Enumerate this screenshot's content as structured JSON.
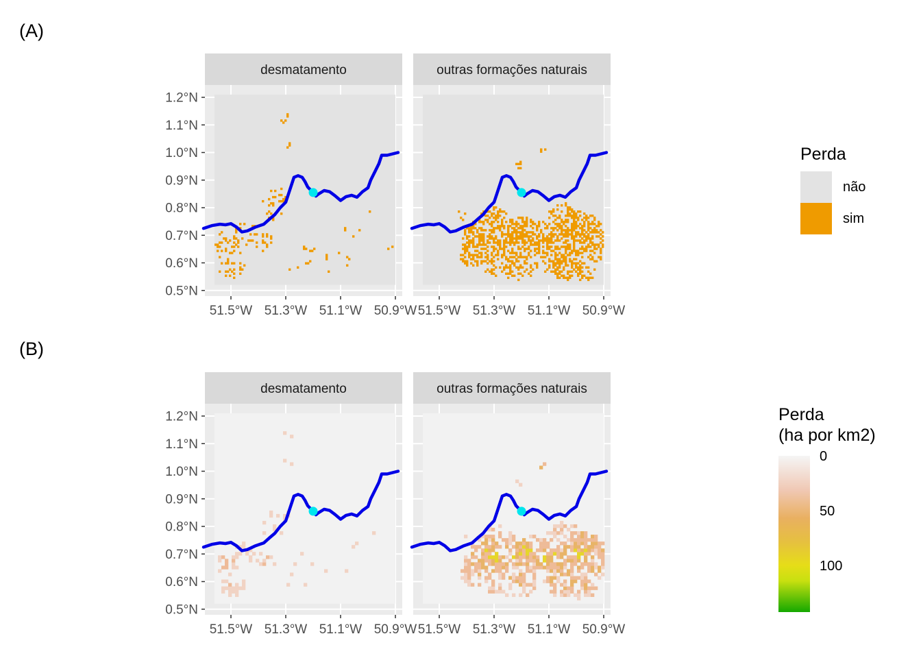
{
  "figure": {
    "panel_a_tag": "(A)",
    "panel_b_tag": "(B)"
  },
  "facets": [
    "desmatamento",
    "outras formações naturais"
  ],
  "axes": {
    "x_ticks": [
      "51.5°W",
      "51.3°W",
      "51.1°W",
      "50.9°W"
    ],
    "x_tick_values": [
      -51.5,
      -51.3,
      -51.1,
      -50.9
    ],
    "y_ticks": [
      "1.2°N",
      "1.1°N",
      "1.0°N",
      "0.9°N",
      "0.8°N",
      "0.7°N",
      "0.6°N",
      "0.5°N"
    ],
    "y_tick_values": [
      1.2,
      1.1,
      1.0,
      0.9,
      0.8,
      0.7,
      0.6,
      0.5
    ],
    "x_range": [
      -51.6,
      -50.87
    ],
    "y_range": [
      0.49,
      1.23
    ]
  },
  "legend_a": {
    "title": "Perda",
    "items": [
      {
        "label": "não",
        "color": "#e3e3e3"
      },
      {
        "label": "sim",
        "color": "#ef9b00"
      }
    ]
  },
  "legend_b": {
    "title_line1": "Perda",
    "title_line2": "(ha por km2)",
    "ticks": [
      "0",
      "50",
      "100"
    ],
    "tick_values": [
      0,
      50,
      100
    ],
    "colors": [
      "#f5f5f5",
      "#f0c8b4",
      "#e9b060",
      "#e6dd18",
      "#14a800"
    ]
  },
  "colors": {
    "panel_bg": "#ebebeb",
    "strip_bg": "#d9d9d9",
    "raster_no": "#e3e3e3",
    "raster_yes": "#ef9b00",
    "density_zero": "#f2f2f2",
    "river": "#0000e6",
    "point": "#00e5ee"
  },
  "map_features": {
    "river_path": [
      [
        -51.6,
        0.725
      ],
      [
        -51.57,
        0.735
      ],
      [
        -51.54,
        0.74
      ],
      [
        -51.52,
        0.738
      ],
      [
        -51.5,
        0.742
      ],
      [
        -51.48,
        0.73
      ],
      [
        -51.46,
        0.712
      ],
      [
        -51.44,
        0.716
      ],
      [
        -51.41,
        0.73
      ],
      [
        -51.38,
        0.74
      ],
      [
        -51.36,
        0.758
      ],
      [
        -51.34,
        0.775
      ],
      [
        -51.32,
        0.8
      ],
      [
        -51.3,
        0.82
      ],
      [
        -51.29,
        0.85
      ],
      [
        -51.28,
        0.88
      ],
      [
        -51.27,
        0.91
      ],
      [
        -51.255,
        0.916
      ],
      [
        -51.24,
        0.91
      ],
      [
        -51.23,
        0.895
      ],
      [
        -51.22,
        0.875
      ],
      [
        -51.2,
        0.855
      ],
      [
        -51.19,
        0.842
      ],
      [
        -51.18,
        0.85
      ],
      [
        -51.16,
        0.862
      ],
      [
        -51.14,
        0.858
      ],
      [
        -51.12,
        0.843
      ],
      [
        -51.1,
        0.826
      ],
      [
        -51.08,
        0.84
      ],
      [
        -51.06,
        0.845
      ],
      [
        -51.04,
        0.838
      ],
      [
        -51.02,
        0.858
      ],
      [
        -51.0,
        0.872
      ],
      [
        -50.99,
        0.9
      ],
      [
        -50.975,
        0.93
      ],
      [
        -50.96,
        0.96
      ],
      [
        -50.95,
        0.99
      ],
      [
        -50.93,
        0.99
      ],
      [
        -50.91,
        0.995
      ],
      [
        -50.89,
        1.0
      ]
    ],
    "point": [
      -51.2,
      0.855
    ]
  }
}
